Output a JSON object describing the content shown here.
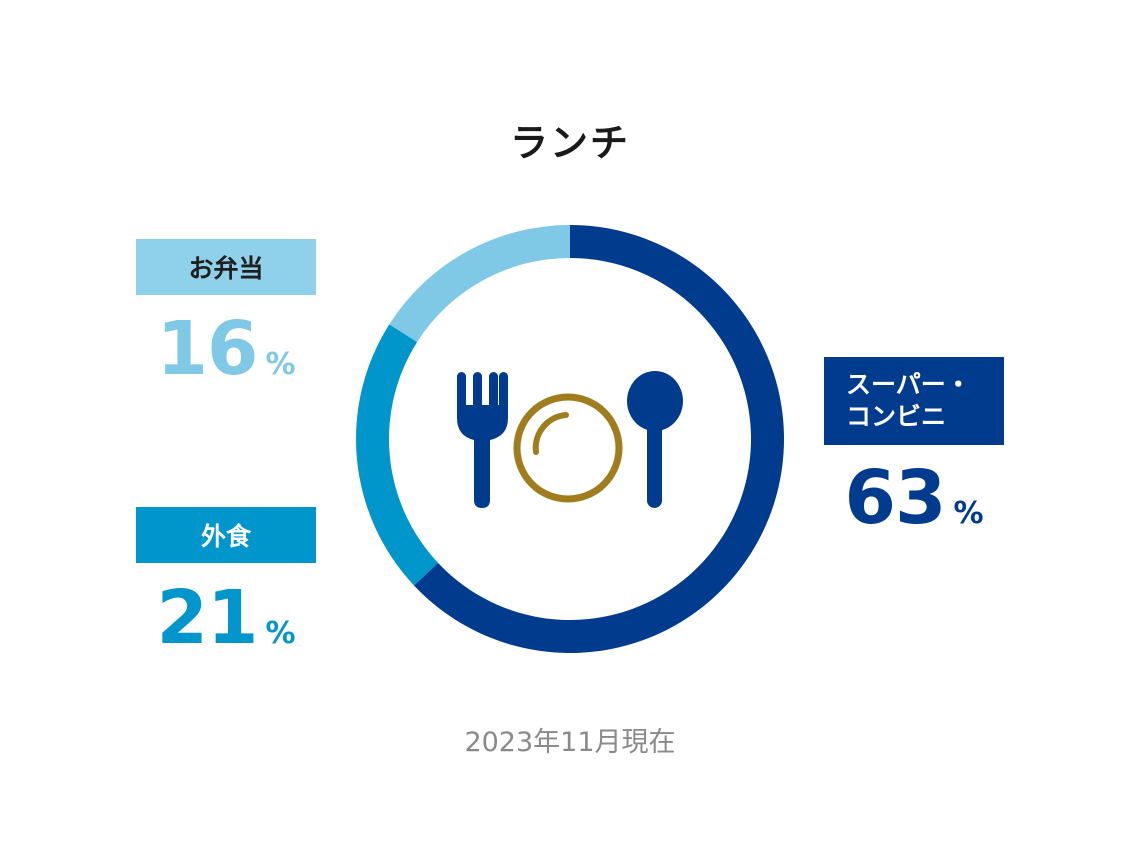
{
  "chart_data": {
    "type": "pie",
    "title": "ランチ",
    "slices": [
      {
        "label": "スーパー・コンビニ",
        "value": 63,
        "color": "#003b8e"
      },
      {
        "label": "外食",
        "value": 21,
        "color": "#0095cb"
      },
      {
        "label": "お弁当",
        "value": 16,
        "color": "#7fc8e6"
      }
    ],
    "unit": "%",
    "note": "2023年11月現在"
  },
  "labels": {
    "bento": "お弁当",
    "gaishoku": "外食",
    "super_line1": "スーパー・",
    "super_line2": "コンビニ"
  },
  "values": {
    "bento": "16",
    "gaishoku": "21",
    "super": "63",
    "unit": "%"
  },
  "icons": [
    "fork-icon",
    "plate-icon",
    "spoon-icon"
  ],
  "colors": {
    "super": "#003b8e",
    "gaishoku": "#0095cb",
    "bento": "#7fc8e6",
    "bento_label_bg": "#8fd0ea",
    "plate": "#a07c1c"
  }
}
